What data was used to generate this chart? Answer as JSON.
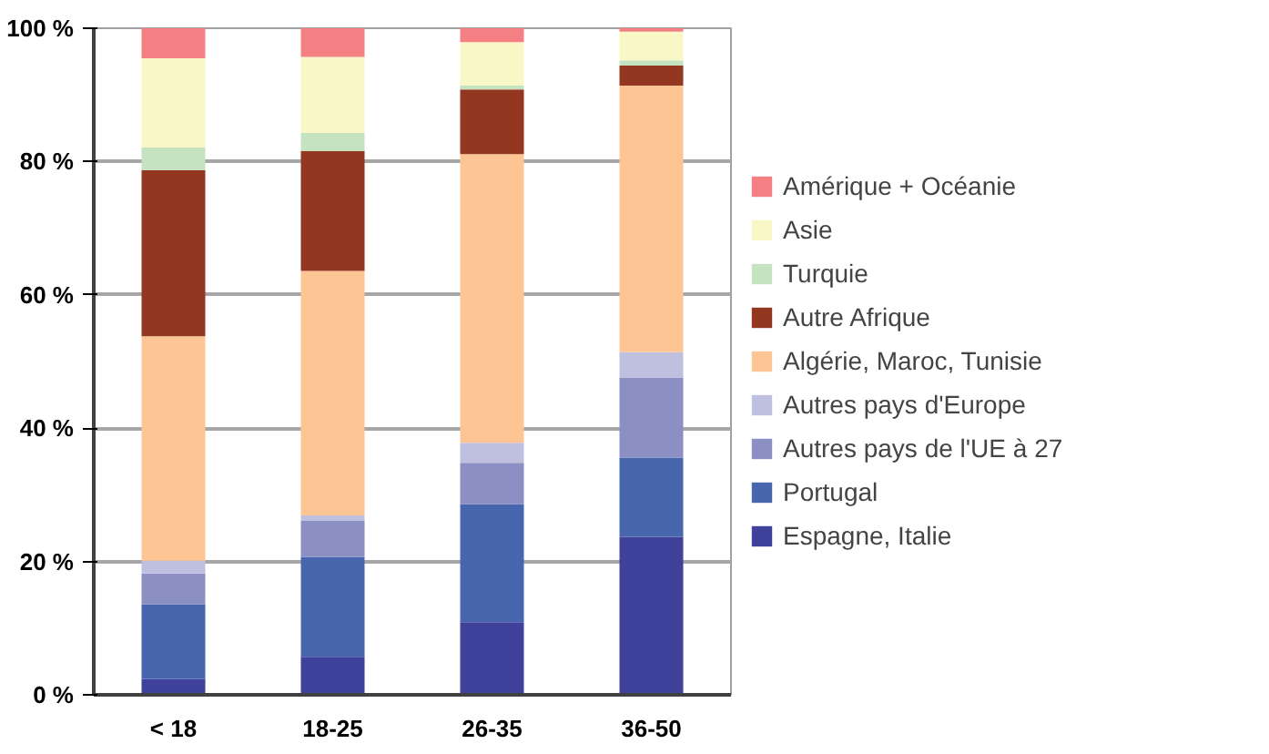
{
  "chart_data": {
    "type": "bar",
    "stacked": true,
    "categories": [
      "< 18",
      "18-25",
      "26-35",
      "36-50"
    ],
    "series": [
      {
        "name": "Espagne, Italie",
        "color": "#40419b",
        "values": [
          2.4,
          5.7,
          10.9,
          23.7
        ]
      },
      {
        "name": "Portugal",
        "color": "#4866ae",
        "values": [
          11.2,
          15.0,
          17.7,
          11.9
        ]
      },
      {
        "name": "Autres pays de l'UE à 27",
        "color": "#8b8fc4",
        "values": [
          4.6,
          5.4,
          6.2,
          12.0
        ]
      },
      {
        "name": "Autres pays d'Europe",
        "color": "#bfbfe0",
        "values": [
          1.9,
          0.8,
          3.0,
          3.8
        ]
      },
      {
        "name": "Algérie, Maroc, Tunisie",
        "color": "#fdc593",
        "values": [
          33.7,
          36.7,
          43.3,
          40.0
        ]
      },
      {
        "name": "Autre Afrique",
        "color": "#943720",
        "values": [
          24.9,
          18.0,
          9.7,
          3.0
        ]
      },
      {
        "name": "Turquie",
        "color": "#c5e3c1",
        "values": [
          3.4,
          2.7,
          0.6,
          0.8
        ]
      },
      {
        "name": "Asie",
        "color": "#faf7c7",
        "values": [
          13.4,
          11.4,
          6.5,
          4.3
        ]
      },
      {
        "name": "Amérique + Océanie",
        "color": "#f48084",
        "values": [
          4.5,
          4.3,
          2.1,
          0.5
        ]
      }
    ],
    "ylim": [
      0,
      100
    ],
    "yticks": [
      {
        "value": 0,
        "label": "0 %"
      },
      {
        "value": 20,
        "label": "20 %"
      },
      {
        "value": 40,
        "label": "40 %"
      },
      {
        "value": 60,
        "label": "60 %"
      },
      {
        "value": 80,
        "label": "80 %"
      },
      {
        "value": 100,
        "label": "100 %"
      }
    ],
    "grid": "y",
    "legend": "right"
  }
}
